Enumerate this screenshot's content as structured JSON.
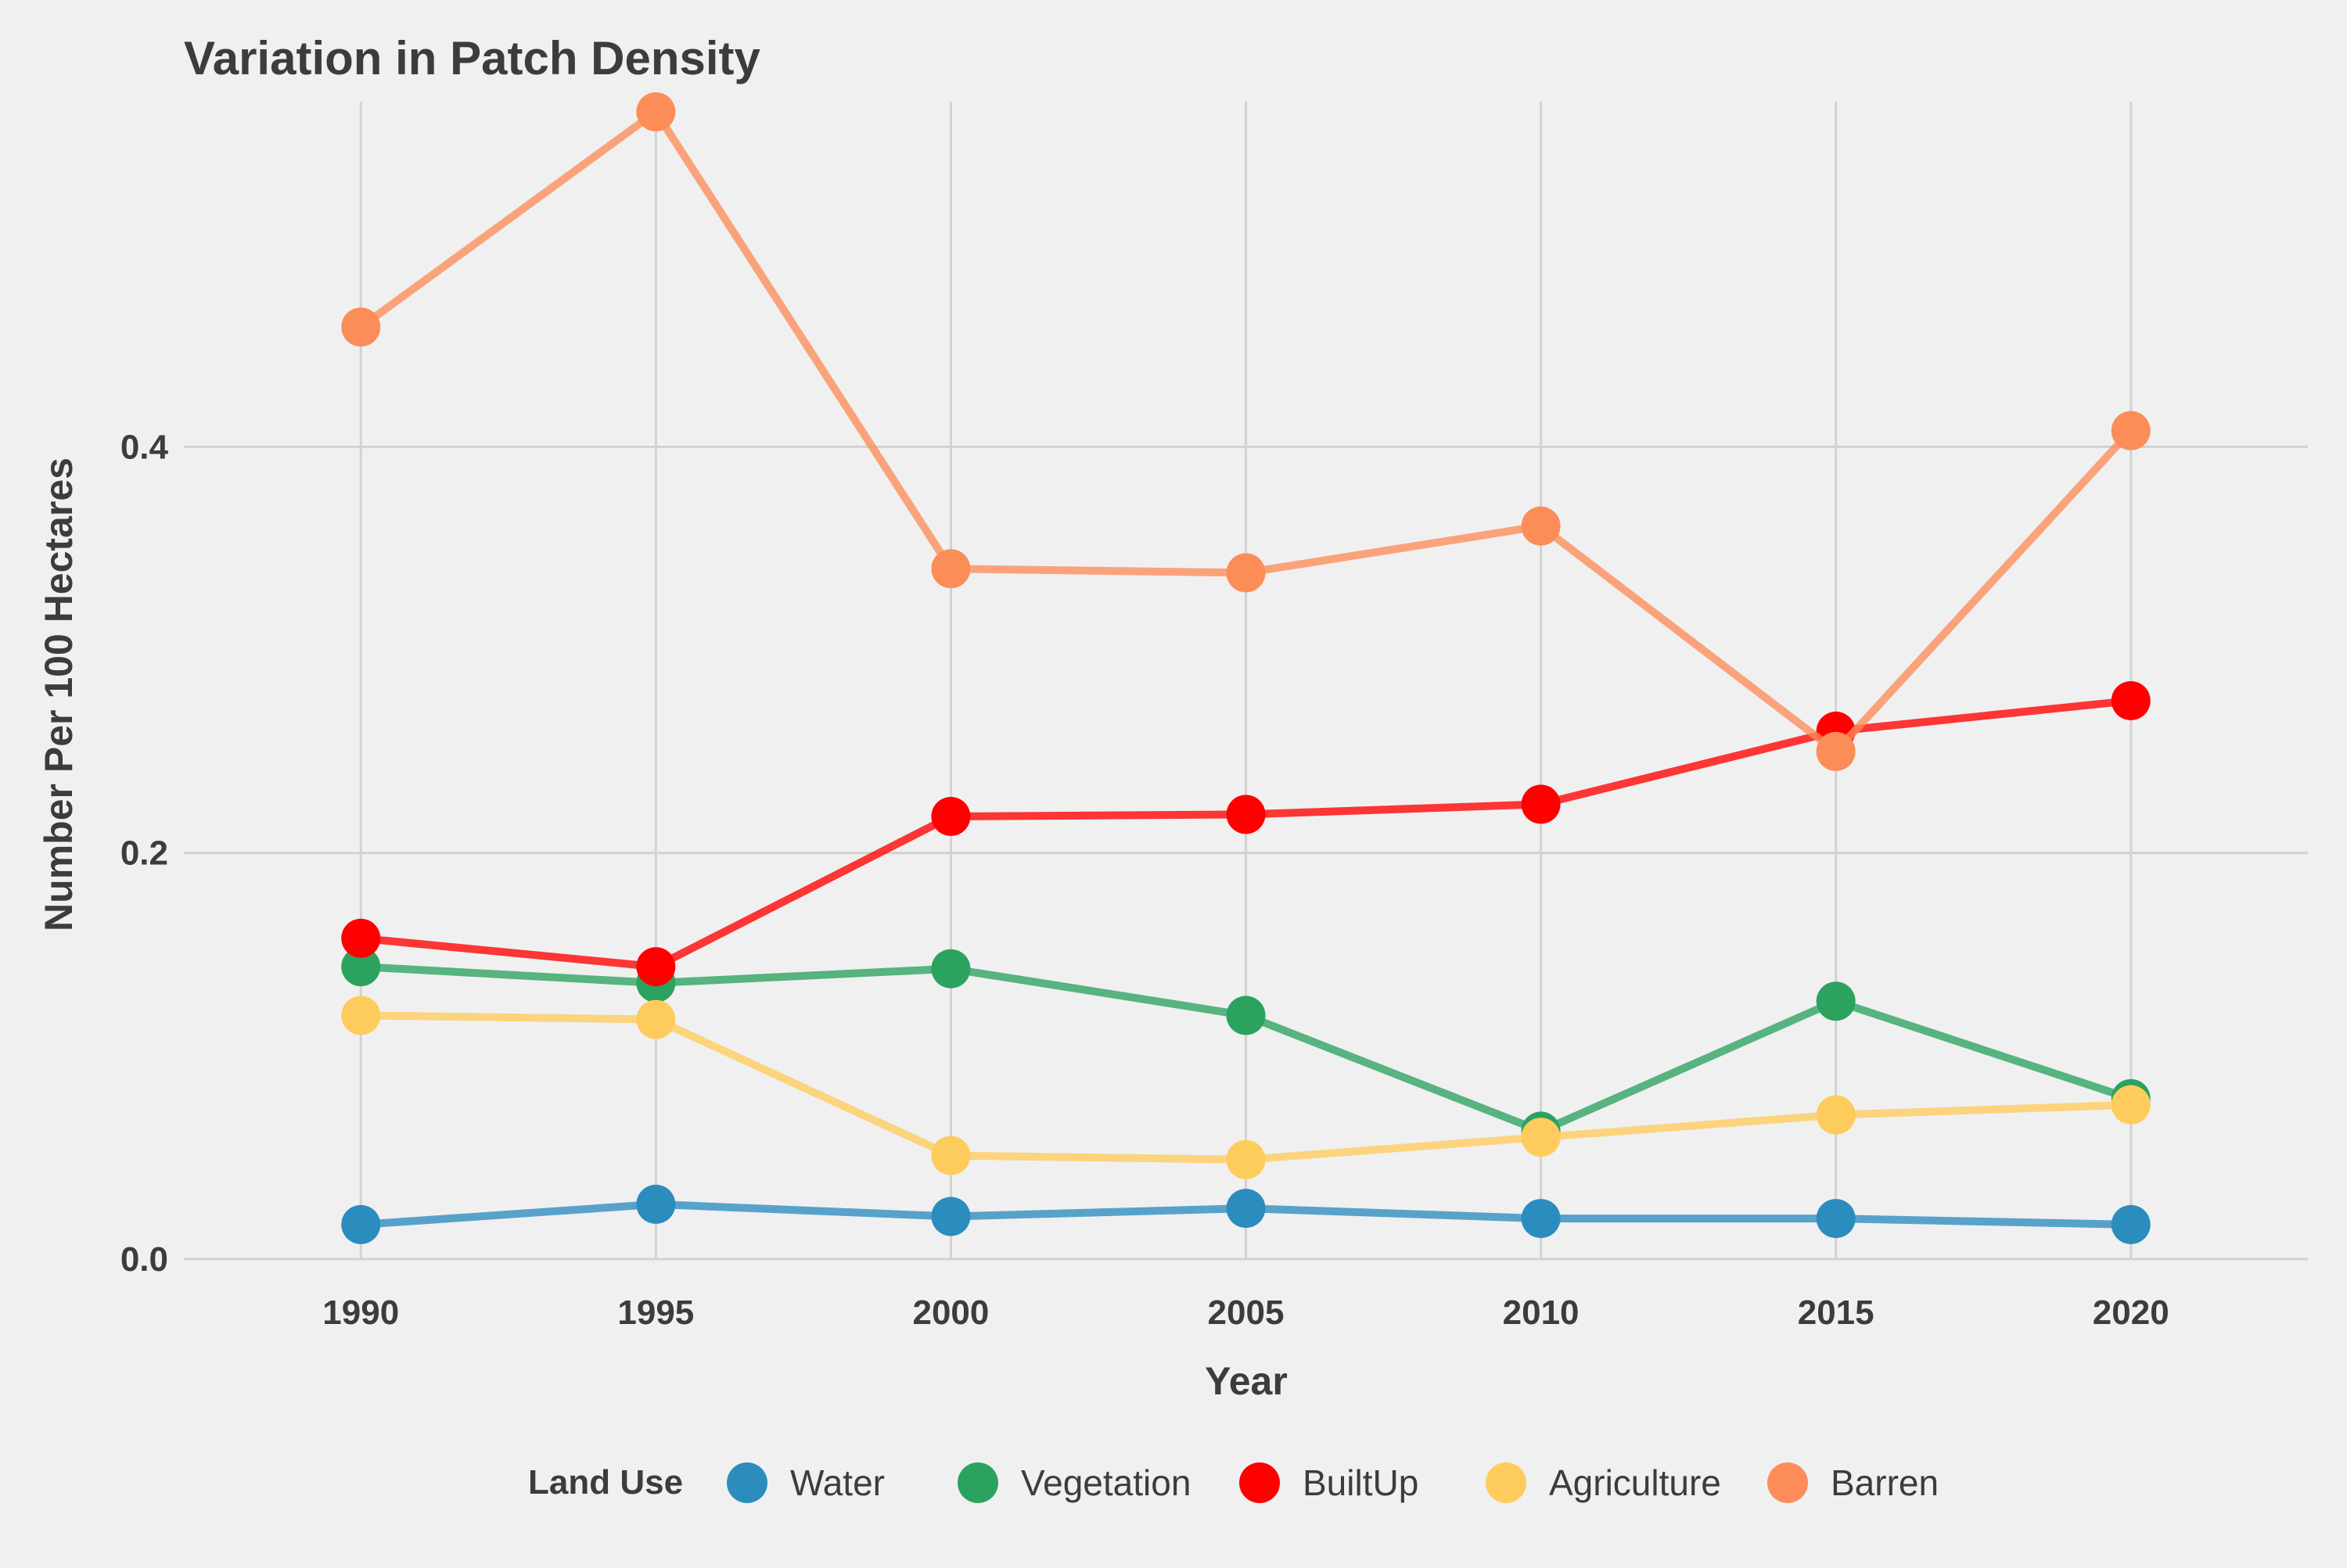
{
  "chart_data": {
    "type": "line",
    "title": "Variation in Patch Density",
    "xlabel": "Year",
    "ylabel": "Number Per 100 Hectares",
    "x": [
      1990,
      1995,
      2000,
      2005,
      2010,
      2015,
      2020
    ],
    "xlim": [
      1987,
      2023
    ],
    "ylim": [
      0.0,
      0.57
    ],
    "yticks": [
      0.0,
      0.2,
      0.4
    ],
    "ytick_labels": [
      "0.0",
      "0.2",
      "0.4"
    ],
    "xtick_labels": [
      "1990",
      "1995",
      "2000",
      "2005",
      "2010",
      "2015",
      "2020"
    ],
    "grid": true,
    "legend": {
      "title": "Land Use",
      "position": "bottom"
    },
    "series": [
      {
        "name": "Water",
        "color": "#2b8cbe",
        "values": [
          0.017,
          0.027,
          0.021,
          0.025,
          0.02,
          0.02,
          0.017
        ]
      },
      {
        "name": "Vegetation",
        "color": "#2ca25f",
        "values": [
          0.144,
          0.136,
          0.143,
          0.12,
          0.063,
          0.127,
          0.079
        ]
      },
      {
        "name": "BuiltUp",
        "color": "#ff0000",
        "values": [
          0.158,
          0.144,
          0.218,
          0.219,
          0.224,
          0.26,
          0.275
        ]
      },
      {
        "name": "Agriculture",
        "color": "#fecc5c",
        "values": [
          0.12,
          0.118,
          0.051,
          0.049,
          0.06,
          0.071,
          0.076
        ]
      },
      {
        "name": "Barren",
        "color": "#fc8d59",
        "values": [
          0.459,
          0.565,
          0.34,
          0.338,
          0.361,
          0.25,
          0.408
        ]
      }
    ]
  }
}
